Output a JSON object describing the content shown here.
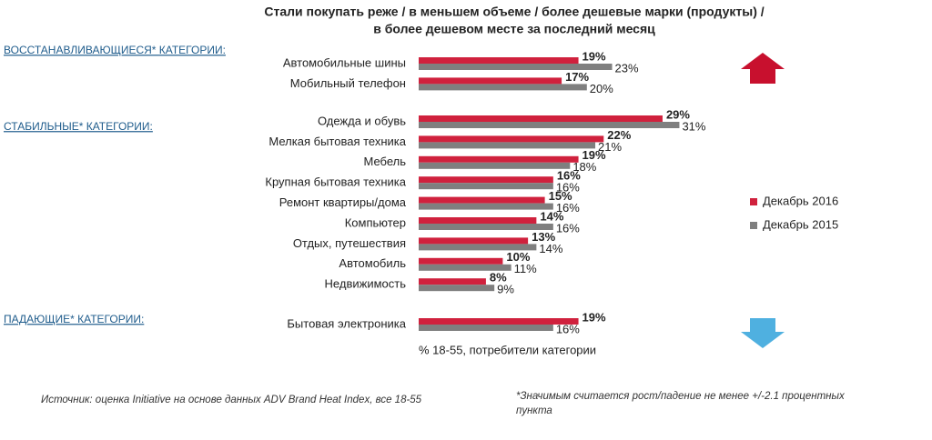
{
  "chart_data": {
    "type": "grouped-hbar",
    "title_lines": [
      "Стали покупать реже / в меньшем объеме / более дешевые марки (продукты) /",
      "в более дешевом месте за последний месяц"
    ],
    "groups": [
      {
        "label": "ВОССТАНАВЛИВАЮЩИЕСЯ* КАТЕГОРИИ:",
        "categories": [
          "Автомобильные шины",
          "Мобильный телефон"
        ]
      },
      {
        "label": "СТАБИЛЬНЫЕ* КАТЕГОРИИ:",
        "categories": [
          "Одежда и обувь",
          "Мелкая бытовая техника",
          "Мебель",
          "Крупная бытовая техника",
          "Ремонт квартиры/дома",
          "Компьютер",
          "Отдых, путешествия",
          "Автомобиль",
          "Недвижимость"
        ]
      },
      {
        "label": "ПАДАЮЩИЕ* КАТЕГОРИИ:",
        "categories": [
          "Бытовая электроника"
        ]
      }
    ],
    "series": [
      {
        "name": "Декабрь 2016",
        "color": "#d0213d",
        "values": [
          19,
          17,
          29,
          22,
          19,
          16,
          15,
          14,
          13,
          10,
          8,
          19
        ],
        "value_labels": [
          "19%",
          "17%",
          "29%",
          "22%",
          "19%",
          "16%",
          "15%",
          "14%",
          "13%",
          "10%",
          "8%",
          "19%"
        ]
      },
      {
        "name": "Декабрь 2015",
        "color": "#7f7f7f",
        "values": [
          23,
          20,
          31,
          21,
          18,
          16,
          16,
          16,
          14,
          11,
          9,
          16
        ],
        "value_labels": [
          "23%",
          "20%",
          "31%",
          "21%",
          "18%",
          "16%",
          "16%",
          "16%",
          "14%",
          "11%",
          "9%",
          "16%"
        ]
      }
    ],
    "note": "% 18-55, потребители категории",
    "source": "Источник: оценка Initiative на основе данных ADV Brand Heat Index, все 18-55",
    "footnote_lines": [
      "*Значимым считается рост/падение не менее +/-2.1 процентных",
      "пункта"
    ]
  }
}
